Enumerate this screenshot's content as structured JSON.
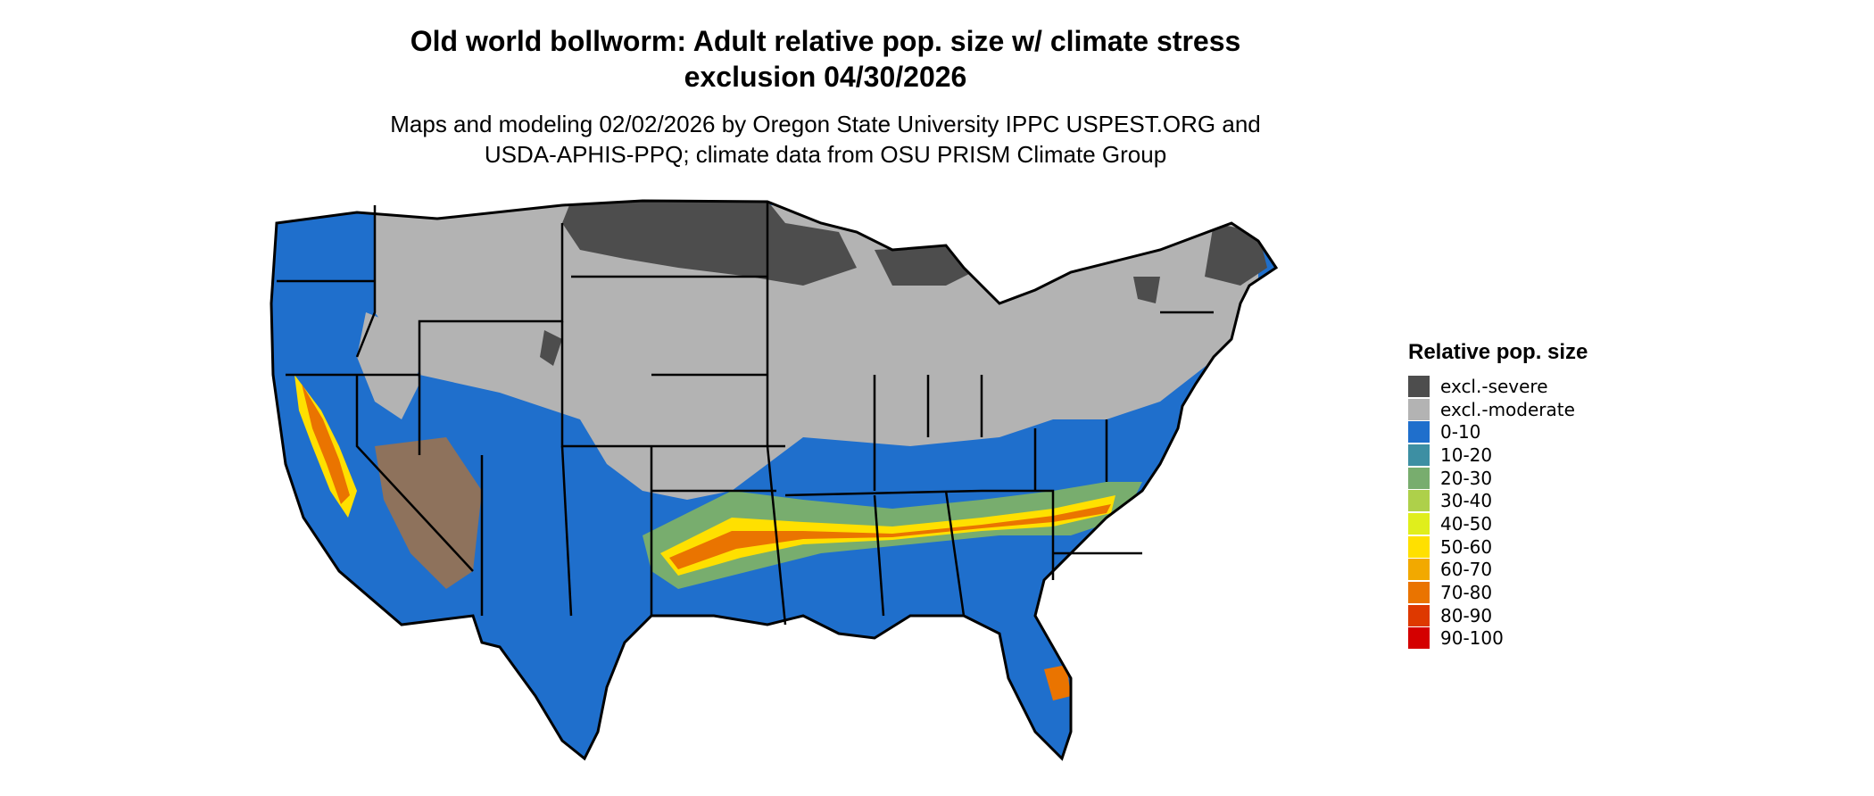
{
  "title_line1": "Old world bollworm: Adult relative pop. size w/ climate stress",
  "title_line2": "exclusion 04/30/2026",
  "subtitle_line1": "Maps and modeling 02/02/2026 by Oregon State University IPPC USPEST.ORG and",
  "subtitle_line2": "USDA-APHIS-PPQ; climate data from OSU PRISM Climate Group",
  "legend": {
    "title": "Relative pop. size",
    "items": [
      {
        "label": "excl.-severe",
        "color": "#4d4d4d"
      },
      {
        "label": "excl.-moderate",
        "color": "#b3b3b3"
      },
      {
        "label": "0-10",
        "color": "#1f6fcc"
      },
      {
        "label": "10-20",
        "color": "#3d8fa3"
      },
      {
        "label": "20-30",
        "color": "#78ad6e"
      },
      {
        "label": "30-40",
        "color": "#aed04a"
      },
      {
        "label": "40-50",
        "color": "#e0ee1c"
      },
      {
        "label": "50-60",
        "color": "#ffe000"
      },
      {
        "label": "60-70",
        "color": "#f2a900"
      },
      {
        "label": "70-80",
        "color": "#ea7400"
      },
      {
        "label": "80-90",
        "color": "#de3900"
      },
      {
        "label": "90-100",
        "color": "#d40000"
      }
    ]
  },
  "map": {
    "region": "Contiguous United States",
    "colors": {
      "severe": "#4d4d4d",
      "moderate": "#b3b3b3",
      "low": "#1f6fcc",
      "mid": "#78ad6e",
      "yellow": "#ffe000",
      "orange": "#ea7400",
      "red": "#d40000",
      "border": "#000000"
    }
  }
}
